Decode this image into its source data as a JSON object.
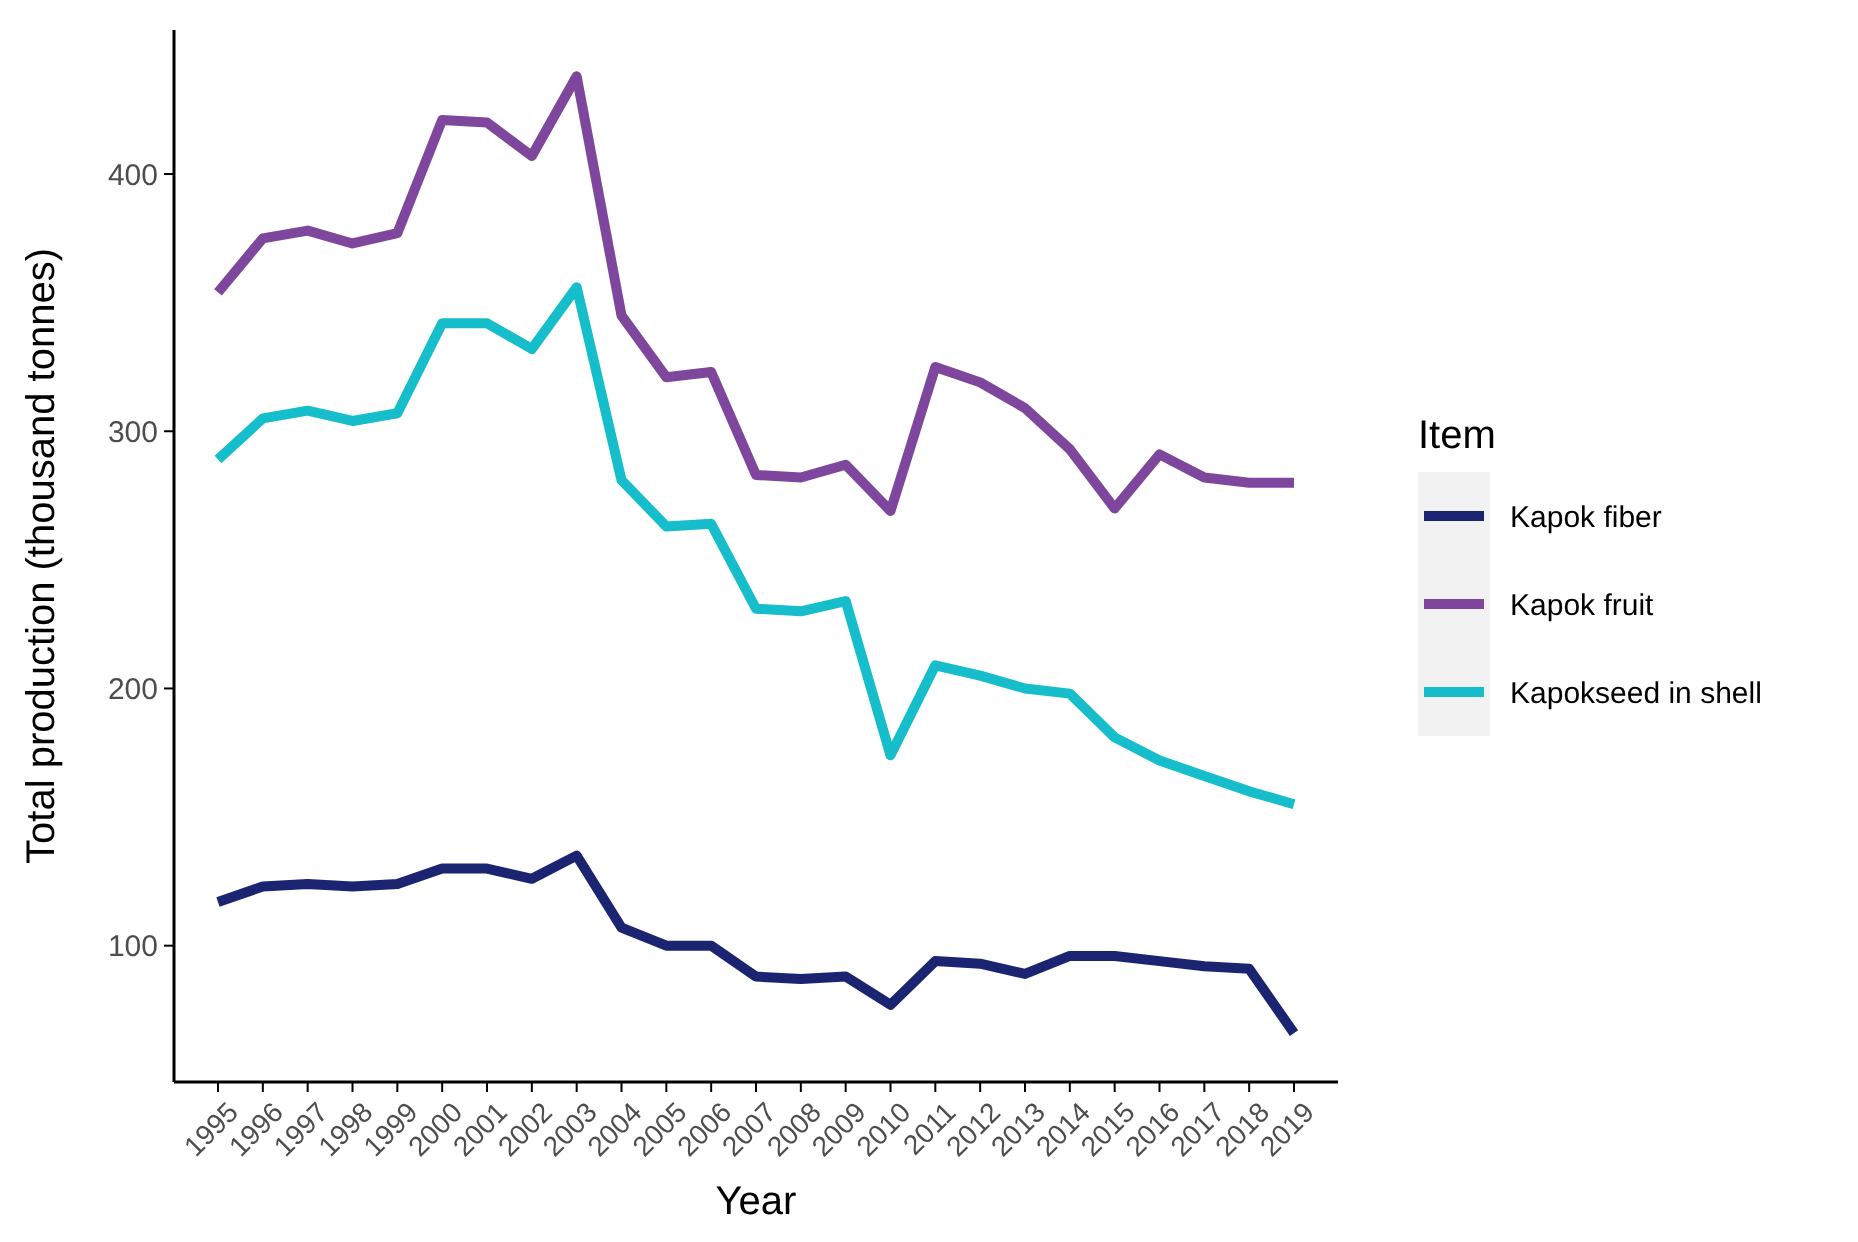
{
  "chart_data": {
    "type": "line",
    "xlabel": "Year",
    "ylabel": "Total production (thousand tonnes)",
    "legend_title": "Item",
    "legend": "right",
    "grid": false,
    "categories": [
      "1995",
      "1996",
      "1997",
      "1998",
      "1999",
      "2000",
      "2001",
      "2002",
      "2003",
      "2004",
      "2005",
      "2006",
      "2007",
      "2008",
      "2009",
      "2010",
      "2011",
      "2012",
      "2013",
      "2014",
      "2015",
      "2016",
      "2017",
      "2018",
      "2019"
    ],
    "ylim": [
      47,
      456
    ],
    "yticks": [
      100,
      200,
      300,
      400
    ],
    "series": [
      {
        "name": "Kapok fiber",
        "color": "#1b2470",
        "values": [
          117,
          123,
          124,
          123,
          124,
          130,
          130,
          126,
          135,
          107,
          100,
          100,
          88,
          87,
          88,
          77,
          94,
          93,
          89,
          96,
          96,
          94,
          92,
          91,
          66
        ]
      },
      {
        "name": "Kapok fruit",
        "color": "#7e479d",
        "values": [
          354,
          375,
          378,
          373,
          377,
          421,
          420,
          407,
          438,
          345,
          321,
          323,
          283,
          282,
          287,
          269,
          325,
          319,
          309,
          293,
          270,
          291,
          282,
          280,
          280
        ]
      },
      {
        "name": "Kapokseed in shell",
        "color": "#16bdca",
        "values": [
          289,
          305,
          308,
          304,
          307,
          342,
          342,
          332,
          356,
          281,
          263,
          264,
          231,
          230,
          234,
          174,
          209,
          205,
          200,
          198,
          181,
          172,
          166,
          160,
          155
        ]
      }
    ]
  }
}
